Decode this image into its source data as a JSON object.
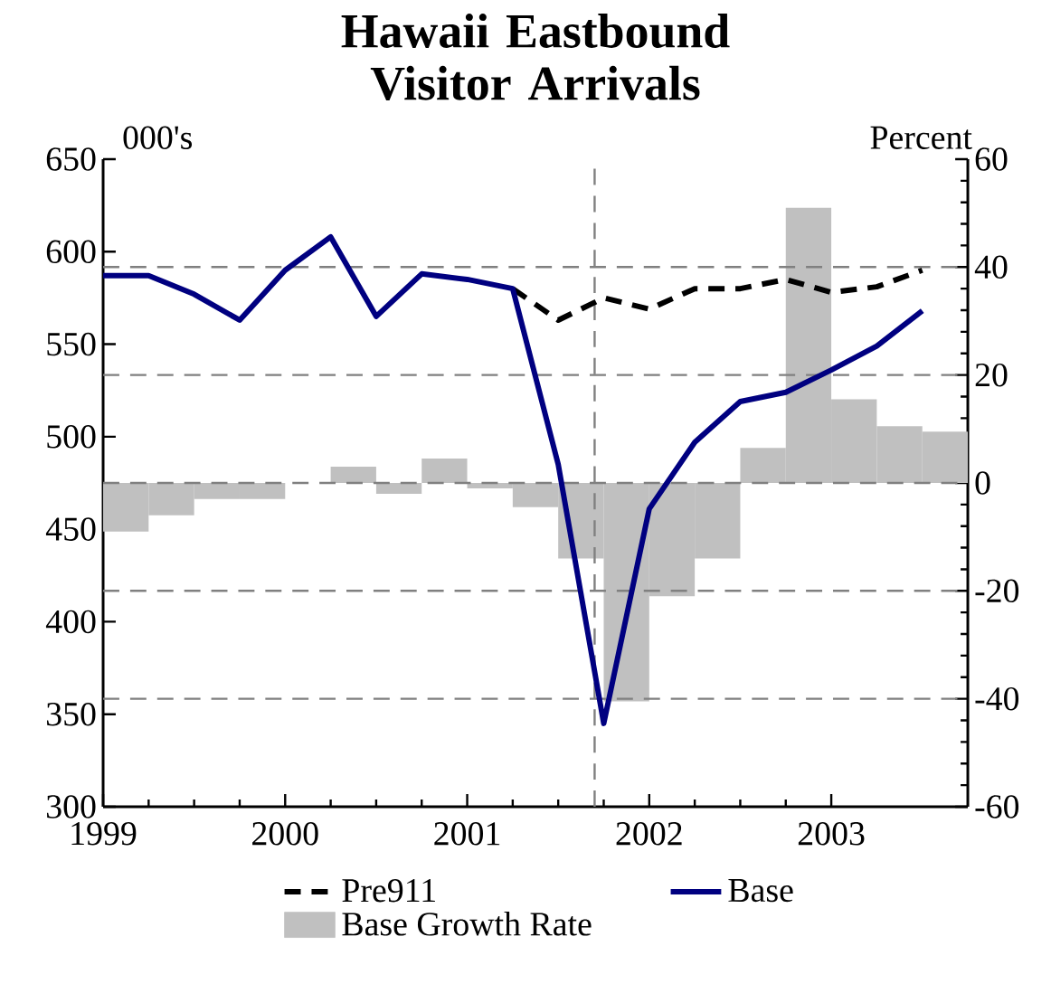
{
  "chart_data": {
    "type": "line",
    "title": "Hawaii Eastbound Visitor Arrivals",
    "ylabel": "000's",
    "y2label": "Percent",
    "x": [
      1999.0,
      1999.25,
      1999.5,
      1999.75,
      2000.0,
      2000.25,
      2000.5,
      2000.75,
      2001.0,
      2001.25,
      2001.5,
      2001.75,
      2002.0,
      2002.25,
      2002.5,
      2002.75,
      2003.0,
      2003.25,
      2003.5
    ],
    "series": [
      {
        "name": "Pre911",
        "color": "#000000",
        "line_style": "dashed",
        "values": [
          null,
          null,
          null,
          null,
          null,
          null,
          null,
          null,
          null,
          580,
          563,
          575,
          569,
          580,
          580,
          585,
          578,
          581,
          590
        ]
      },
      {
        "name": "Base",
        "color": "#000080",
        "line_style": "solid",
        "values": [
          587,
          587,
          577,
          563,
          590,
          608,
          565,
          588,
          585,
          580,
          485,
          345,
          461,
          497,
          519,
          524,
          536,
          549,
          568
        ]
      },
      {
        "name": "Base Growth Rate",
        "type": "bar",
        "axis": "y2",
        "color": "#c0c0c0",
        "x": [
          1999.125,
          1999.375,
          1999.625,
          1999.875,
          2000.125,
          2000.375,
          2000.625,
          2000.875,
          2001.125,
          2001.375,
          2001.625,
          2001.875,
          2002.125,
          2002.375,
          2002.625,
          2002.875,
          2003.125,
          2003.375,
          2003.625
        ],
        "values": [
          -9,
          -6,
          -3,
          -3,
          0,
          3,
          -2,
          4.5,
          -1,
          -4.5,
          -14,
          -40.5,
          -21,
          -14,
          6.5,
          51,
          15.5,
          10.5,
          9.5
        ]
      }
    ],
    "xlim": [
      1999,
      2003.75
    ],
    "xticks": [
      1999,
      2000,
      2001,
      2002,
      2003
    ],
    "ylim": [
      300,
      650
    ],
    "yticks": [
      300,
      350,
      400,
      450,
      500,
      550,
      600,
      650
    ],
    "y2lim": [
      -60,
      60
    ],
    "y2ticks": [
      -60,
      -40,
      -20,
      0,
      20,
      40,
      60
    ],
    "ref_lines": [
      {
        "axis": "y2",
        "value": 40,
        "color": "#808080",
        "line_style": "dashed"
      },
      {
        "axis": "y2",
        "value": 20,
        "color": "#808080",
        "line_style": "dashed"
      },
      {
        "axis": "y2",
        "value": 0,
        "color": "#808080",
        "line_style": "dashed"
      },
      {
        "axis": "y2",
        "value": -20,
        "color": "#808080",
        "line_style": "dashed"
      },
      {
        "axis": "y2",
        "value": -40,
        "color": "#808080",
        "line_style": "dashed"
      },
      {
        "axis": "x",
        "value": 2001.7,
        "color": "#808080",
        "line_style": "dashed"
      }
    ],
    "legend": "bottom"
  }
}
